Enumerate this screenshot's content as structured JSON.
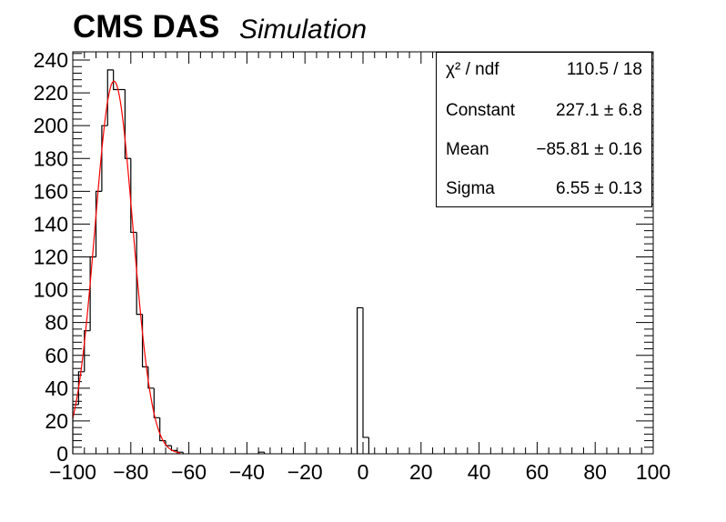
{
  "header": {
    "title": "CMS DAS",
    "subtitle": "Simulation"
  },
  "stats": {
    "rows": [
      {
        "name": "χ² / ndf",
        "value": "110.5 / 18"
      },
      {
        "name": "Constant",
        "value": "227.1 ± 6.8"
      },
      {
        "name": "Mean",
        "value": "−85.81 ± 0.16"
      },
      {
        "name": "Sigma",
        "value": "6.55 ± 0.13"
      }
    ]
  },
  "chart_data": {
    "type": "histogram",
    "xlim": [
      -100,
      100
    ],
    "ylim": [
      0,
      245
    ],
    "xticks": [
      -100,
      -80,
      -60,
      -40,
      -20,
      0,
      20,
      40,
      60,
      80,
      100
    ],
    "xtick_labels": [
      "−100",
      "−80",
      "−60",
      "−40",
      "−20",
      "0",
      "20",
      "40",
      "60",
      "80",
      "100"
    ],
    "yticks": [
      0,
      20,
      40,
      60,
      80,
      100,
      120,
      140,
      160,
      180,
      200,
      220,
      240
    ],
    "ytick_labels": [
      "0",
      "20",
      "40",
      "60",
      "80",
      "100",
      "120",
      "140",
      "160",
      "180",
      "200",
      "220",
      "240"
    ],
    "bin_width": 2,
    "bins": [
      {
        "x": -100,
        "y": 30
      },
      {
        "x": -98,
        "y": 50
      },
      {
        "x": -96,
        "y": 75
      },
      {
        "x": -94,
        "y": 120
      },
      {
        "x": -92,
        "y": 160
      },
      {
        "x": -90,
        "y": 200
      },
      {
        "x": -88,
        "y": 234
      },
      {
        "x": -86,
        "y": 222
      },
      {
        "x": -84,
        "y": 222
      },
      {
        "x": -82,
        "y": 180
      },
      {
        "x": -80,
        "y": 135
      },
      {
        "x": -78,
        "y": 85
      },
      {
        "x": -76,
        "y": 53
      },
      {
        "x": -74,
        "y": 40
      },
      {
        "x": -72,
        "y": 22
      },
      {
        "x": -70,
        "y": 8
      },
      {
        "x": -68,
        "y": 5
      },
      {
        "x": -66,
        "y": 2
      },
      {
        "x": -64,
        "y": 1
      },
      {
        "x": -36,
        "y": 1
      },
      {
        "x": -2,
        "y": 89
      },
      {
        "x": 0,
        "y": 10
      }
    ],
    "fit": {
      "function": "gaus",
      "constant": 227.1,
      "mean": -85.81,
      "sigma": 6.55,
      "range": [
        -100,
        -63
      ],
      "color": "#ff0000"
    },
    "line_color": "#000000"
  }
}
